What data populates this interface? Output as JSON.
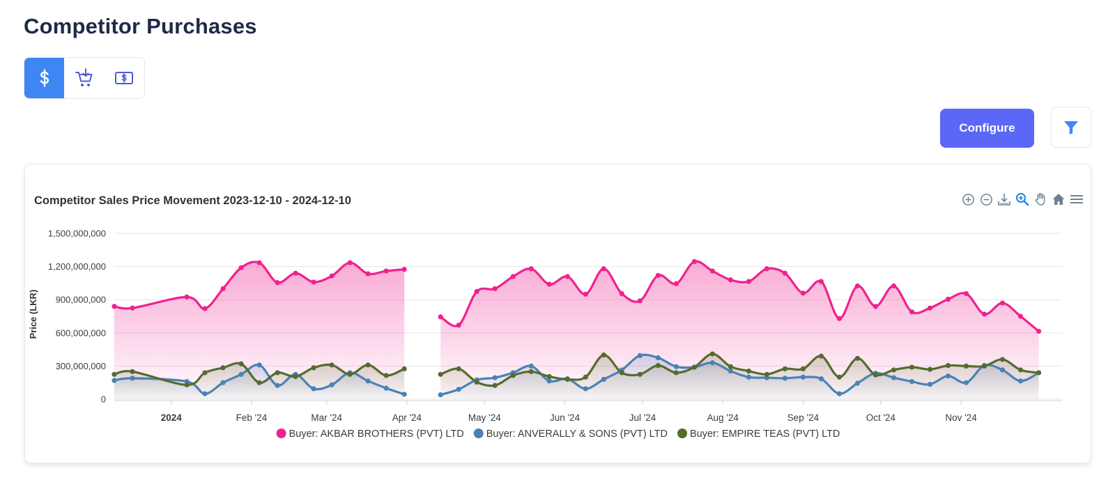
{
  "header": {
    "title": "Competitor Purchases"
  },
  "mode_tabs": [
    {
      "name": "price",
      "icon": "dollar-icon",
      "active": true
    },
    {
      "name": "quantity",
      "icon": "cart-download-icon",
      "active": false
    },
    {
      "name": "sales",
      "icon": "money-bill-icon",
      "active": false
    }
  ],
  "actions": {
    "configure_label": "Configure",
    "filter_icon": "filter-icon"
  },
  "toolbar_icons": [
    "zoom-in-icon",
    "zoom-out-icon",
    "download-icon",
    "selection-zoom-icon",
    "pan-hand-icon",
    "home-icon",
    "menu-icon"
  ],
  "colors": {
    "accent": "#3f86f5",
    "configure": "#5a67f7",
    "series1": "#f0218f",
    "series2": "#4a82b4",
    "series3": "#556b2f"
  },
  "chart_data": {
    "type": "area",
    "title": "Competitor Sales Price Movement 2023-12-10 - 2024-12-10",
    "ylabel": "Price (LKR)",
    "xlabel": "",
    "ylim": [
      0,
      1500000000
    ],
    "yticks": [
      0,
      300000000,
      600000000,
      900000000,
      1200000000,
      1500000000
    ],
    "ytick_labels": [
      "0",
      "300,000,000",
      "600,000,000",
      "900,000,000",
      "1,200,000,000",
      "1,500,000,000"
    ],
    "xlim": [
      "2023-12-10",
      "2024-12-10"
    ],
    "xticks": [
      {
        "date": "2024-01-01",
        "label": "2024",
        "bold": true
      },
      {
        "date": "2024-02-01",
        "label": "Feb '24"
      },
      {
        "date": "2024-03-01",
        "label": "Mar '24"
      },
      {
        "date": "2024-04-01",
        "label": "Apr '24"
      },
      {
        "date": "2024-05-01",
        "label": "May '24"
      },
      {
        "date": "2024-06-01",
        "label": "Jun '24"
      },
      {
        "date": "2024-07-01",
        "label": "Jul '24"
      },
      {
        "date": "2024-08-01",
        "label": "Aug '24"
      },
      {
        "date": "2024-09-01",
        "label": "Sep '24"
      },
      {
        "date": "2024-10-01",
        "label": "Oct '24"
      },
      {
        "date": "2024-11-01",
        "label": "Nov '24"
      }
    ],
    "grid": true,
    "legend": "bottom-center",
    "series": [
      {
        "name": "Buyer: AKBAR BROTHERS (PVT) LTD",
        "color": "#f0218f",
        "points": [
          [
            "2023-12-10",
            840000000
          ],
          [
            "2023-12-17",
            825000000
          ],
          [
            "2024-01-07",
            925000000
          ],
          [
            "2024-01-14",
            820000000
          ],
          [
            "2024-01-21",
            1000000000
          ],
          [
            "2024-01-28",
            1190000000
          ],
          [
            "2024-02-04",
            1235000000
          ],
          [
            "2024-02-11",
            1055000000
          ],
          [
            "2024-02-18",
            1140000000
          ],
          [
            "2024-02-25",
            1060000000
          ],
          [
            "2024-03-03",
            1115000000
          ],
          [
            "2024-03-10",
            1235000000
          ],
          [
            "2024-03-17",
            1135000000
          ],
          [
            "2024-03-24",
            1160000000
          ],
          [
            "2024-03-31",
            1175000000
          ],
          null,
          [
            "2024-04-14",
            745000000
          ],
          [
            "2024-04-21",
            670000000
          ],
          [
            "2024-04-28",
            975000000
          ],
          [
            "2024-05-05",
            1000000000
          ],
          [
            "2024-05-12",
            1110000000
          ],
          [
            "2024-05-19",
            1180000000
          ],
          [
            "2024-05-26",
            1040000000
          ],
          [
            "2024-06-02",
            1110000000
          ],
          [
            "2024-06-09",
            950000000
          ],
          [
            "2024-06-16",
            1180000000
          ],
          [
            "2024-06-23",
            955000000
          ],
          [
            "2024-06-30",
            890000000
          ],
          [
            "2024-07-07",
            1120000000
          ],
          [
            "2024-07-14",
            1045000000
          ],
          [
            "2024-07-21",
            1245000000
          ],
          [
            "2024-07-28",
            1160000000
          ],
          [
            "2024-08-04",
            1080000000
          ],
          [
            "2024-08-11",
            1065000000
          ],
          [
            "2024-08-18",
            1180000000
          ],
          [
            "2024-08-25",
            1140000000
          ],
          [
            "2024-09-01",
            960000000
          ],
          [
            "2024-09-08",
            1065000000
          ],
          [
            "2024-09-15",
            730000000
          ],
          [
            "2024-09-22",
            1025000000
          ],
          [
            "2024-09-29",
            840000000
          ],
          [
            "2024-10-06",
            1025000000
          ],
          [
            "2024-10-13",
            790000000
          ],
          [
            "2024-10-20",
            825000000
          ],
          [
            "2024-10-27",
            905000000
          ],
          [
            "2024-11-03",
            955000000
          ],
          [
            "2024-11-10",
            770000000
          ],
          [
            "2024-11-17",
            870000000
          ],
          [
            "2024-11-24",
            750000000
          ],
          [
            "2024-12-01",
            615000000
          ]
        ]
      },
      {
        "name": "Buyer: ANVERALLY & SONS (PVT) LTD",
        "color": "#4a82b4",
        "points": [
          [
            "2023-12-10",
            170000000
          ],
          [
            "2023-12-17",
            190000000
          ],
          [
            "2024-01-07",
            160000000
          ],
          [
            "2024-01-14",
            50000000
          ],
          [
            "2024-01-21",
            150000000
          ],
          [
            "2024-01-28",
            225000000
          ],
          [
            "2024-02-04",
            310000000
          ],
          [
            "2024-02-11",
            125000000
          ],
          [
            "2024-02-18",
            225000000
          ],
          [
            "2024-02-25",
            95000000
          ],
          [
            "2024-03-03",
            130000000
          ],
          [
            "2024-03-10",
            240000000
          ],
          [
            "2024-03-17",
            165000000
          ],
          [
            "2024-03-24",
            100000000
          ],
          [
            "2024-03-31",
            45000000
          ],
          null,
          [
            "2024-04-14",
            40000000
          ],
          [
            "2024-04-21",
            90000000
          ],
          [
            "2024-04-28",
            175000000
          ],
          [
            "2024-05-05",
            195000000
          ],
          [
            "2024-05-12",
            240000000
          ],
          [
            "2024-05-19",
            300000000
          ],
          [
            "2024-05-26",
            165000000
          ],
          [
            "2024-06-02",
            185000000
          ],
          [
            "2024-06-09",
            95000000
          ],
          [
            "2024-06-16",
            180000000
          ],
          [
            "2024-06-23",
            265000000
          ],
          [
            "2024-06-30",
            395000000
          ],
          [
            "2024-07-07",
            375000000
          ],
          [
            "2024-07-14",
            295000000
          ],
          [
            "2024-07-21",
            290000000
          ],
          [
            "2024-07-28",
            330000000
          ],
          [
            "2024-08-04",
            255000000
          ],
          [
            "2024-08-11",
            200000000
          ],
          [
            "2024-08-18",
            195000000
          ],
          [
            "2024-08-25",
            190000000
          ],
          [
            "2024-09-01",
            200000000
          ],
          [
            "2024-09-08",
            185000000
          ],
          [
            "2024-09-15",
            50000000
          ],
          [
            "2024-09-22",
            145000000
          ],
          [
            "2024-09-29",
            235000000
          ],
          [
            "2024-10-06",
            195000000
          ],
          [
            "2024-10-13",
            160000000
          ],
          [
            "2024-10-20",
            135000000
          ],
          [
            "2024-10-27",
            210000000
          ],
          [
            "2024-11-03",
            150000000
          ],
          [
            "2024-11-10",
            305000000
          ],
          [
            "2024-11-17",
            265000000
          ],
          [
            "2024-11-24",
            165000000
          ],
          [
            "2024-12-01",
            240000000
          ]
        ]
      },
      {
        "name": "Buyer: EMPIRE TEAS (PVT) LTD",
        "color": "#556b2f",
        "points": [
          [
            "2023-12-10",
            225000000
          ],
          [
            "2023-12-17",
            250000000
          ],
          [
            "2024-01-07",
            130000000
          ],
          [
            "2024-01-14",
            240000000
          ],
          [
            "2024-01-21",
            285000000
          ],
          [
            "2024-01-28",
            320000000
          ],
          [
            "2024-02-04",
            150000000
          ],
          [
            "2024-02-11",
            240000000
          ],
          [
            "2024-02-18",
            205000000
          ],
          [
            "2024-02-25",
            285000000
          ],
          [
            "2024-03-03",
            310000000
          ],
          [
            "2024-03-10",
            225000000
          ],
          [
            "2024-03-17",
            310000000
          ],
          [
            "2024-03-24",
            215000000
          ],
          [
            "2024-03-31",
            275000000
          ],
          null,
          [
            "2024-04-14",
            225000000
          ],
          [
            "2024-04-21",
            275000000
          ],
          [
            "2024-04-28",
            155000000
          ],
          [
            "2024-05-05",
            125000000
          ],
          [
            "2024-05-12",
            215000000
          ],
          [
            "2024-05-19",
            250000000
          ],
          [
            "2024-05-26",
            205000000
          ],
          [
            "2024-06-02",
            180000000
          ],
          [
            "2024-06-09",
            200000000
          ],
          [
            "2024-06-16",
            400000000
          ],
          [
            "2024-06-23",
            240000000
          ],
          [
            "2024-06-30",
            225000000
          ],
          [
            "2024-07-07",
            305000000
          ],
          [
            "2024-07-14",
            240000000
          ],
          [
            "2024-07-21",
            290000000
          ],
          [
            "2024-07-28",
            410000000
          ],
          [
            "2024-08-04",
            295000000
          ],
          [
            "2024-08-11",
            255000000
          ],
          [
            "2024-08-18",
            225000000
          ],
          [
            "2024-08-25",
            275000000
          ],
          [
            "2024-09-01",
            275000000
          ],
          [
            "2024-09-08",
            390000000
          ],
          [
            "2024-09-15",
            200000000
          ],
          [
            "2024-09-22",
            370000000
          ],
          [
            "2024-09-29",
            220000000
          ],
          [
            "2024-10-06",
            265000000
          ],
          [
            "2024-10-13",
            290000000
          ],
          [
            "2024-10-20",
            270000000
          ],
          [
            "2024-10-27",
            305000000
          ],
          [
            "2024-11-03",
            300000000
          ],
          [
            "2024-11-10",
            300000000
          ],
          [
            "2024-11-17",
            360000000
          ],
          [
            "2024-11-24",
            265000000
          ],
          [
            "2024-12-01",
            240000000
          ]
        ]
      }
    ]
  }
}
